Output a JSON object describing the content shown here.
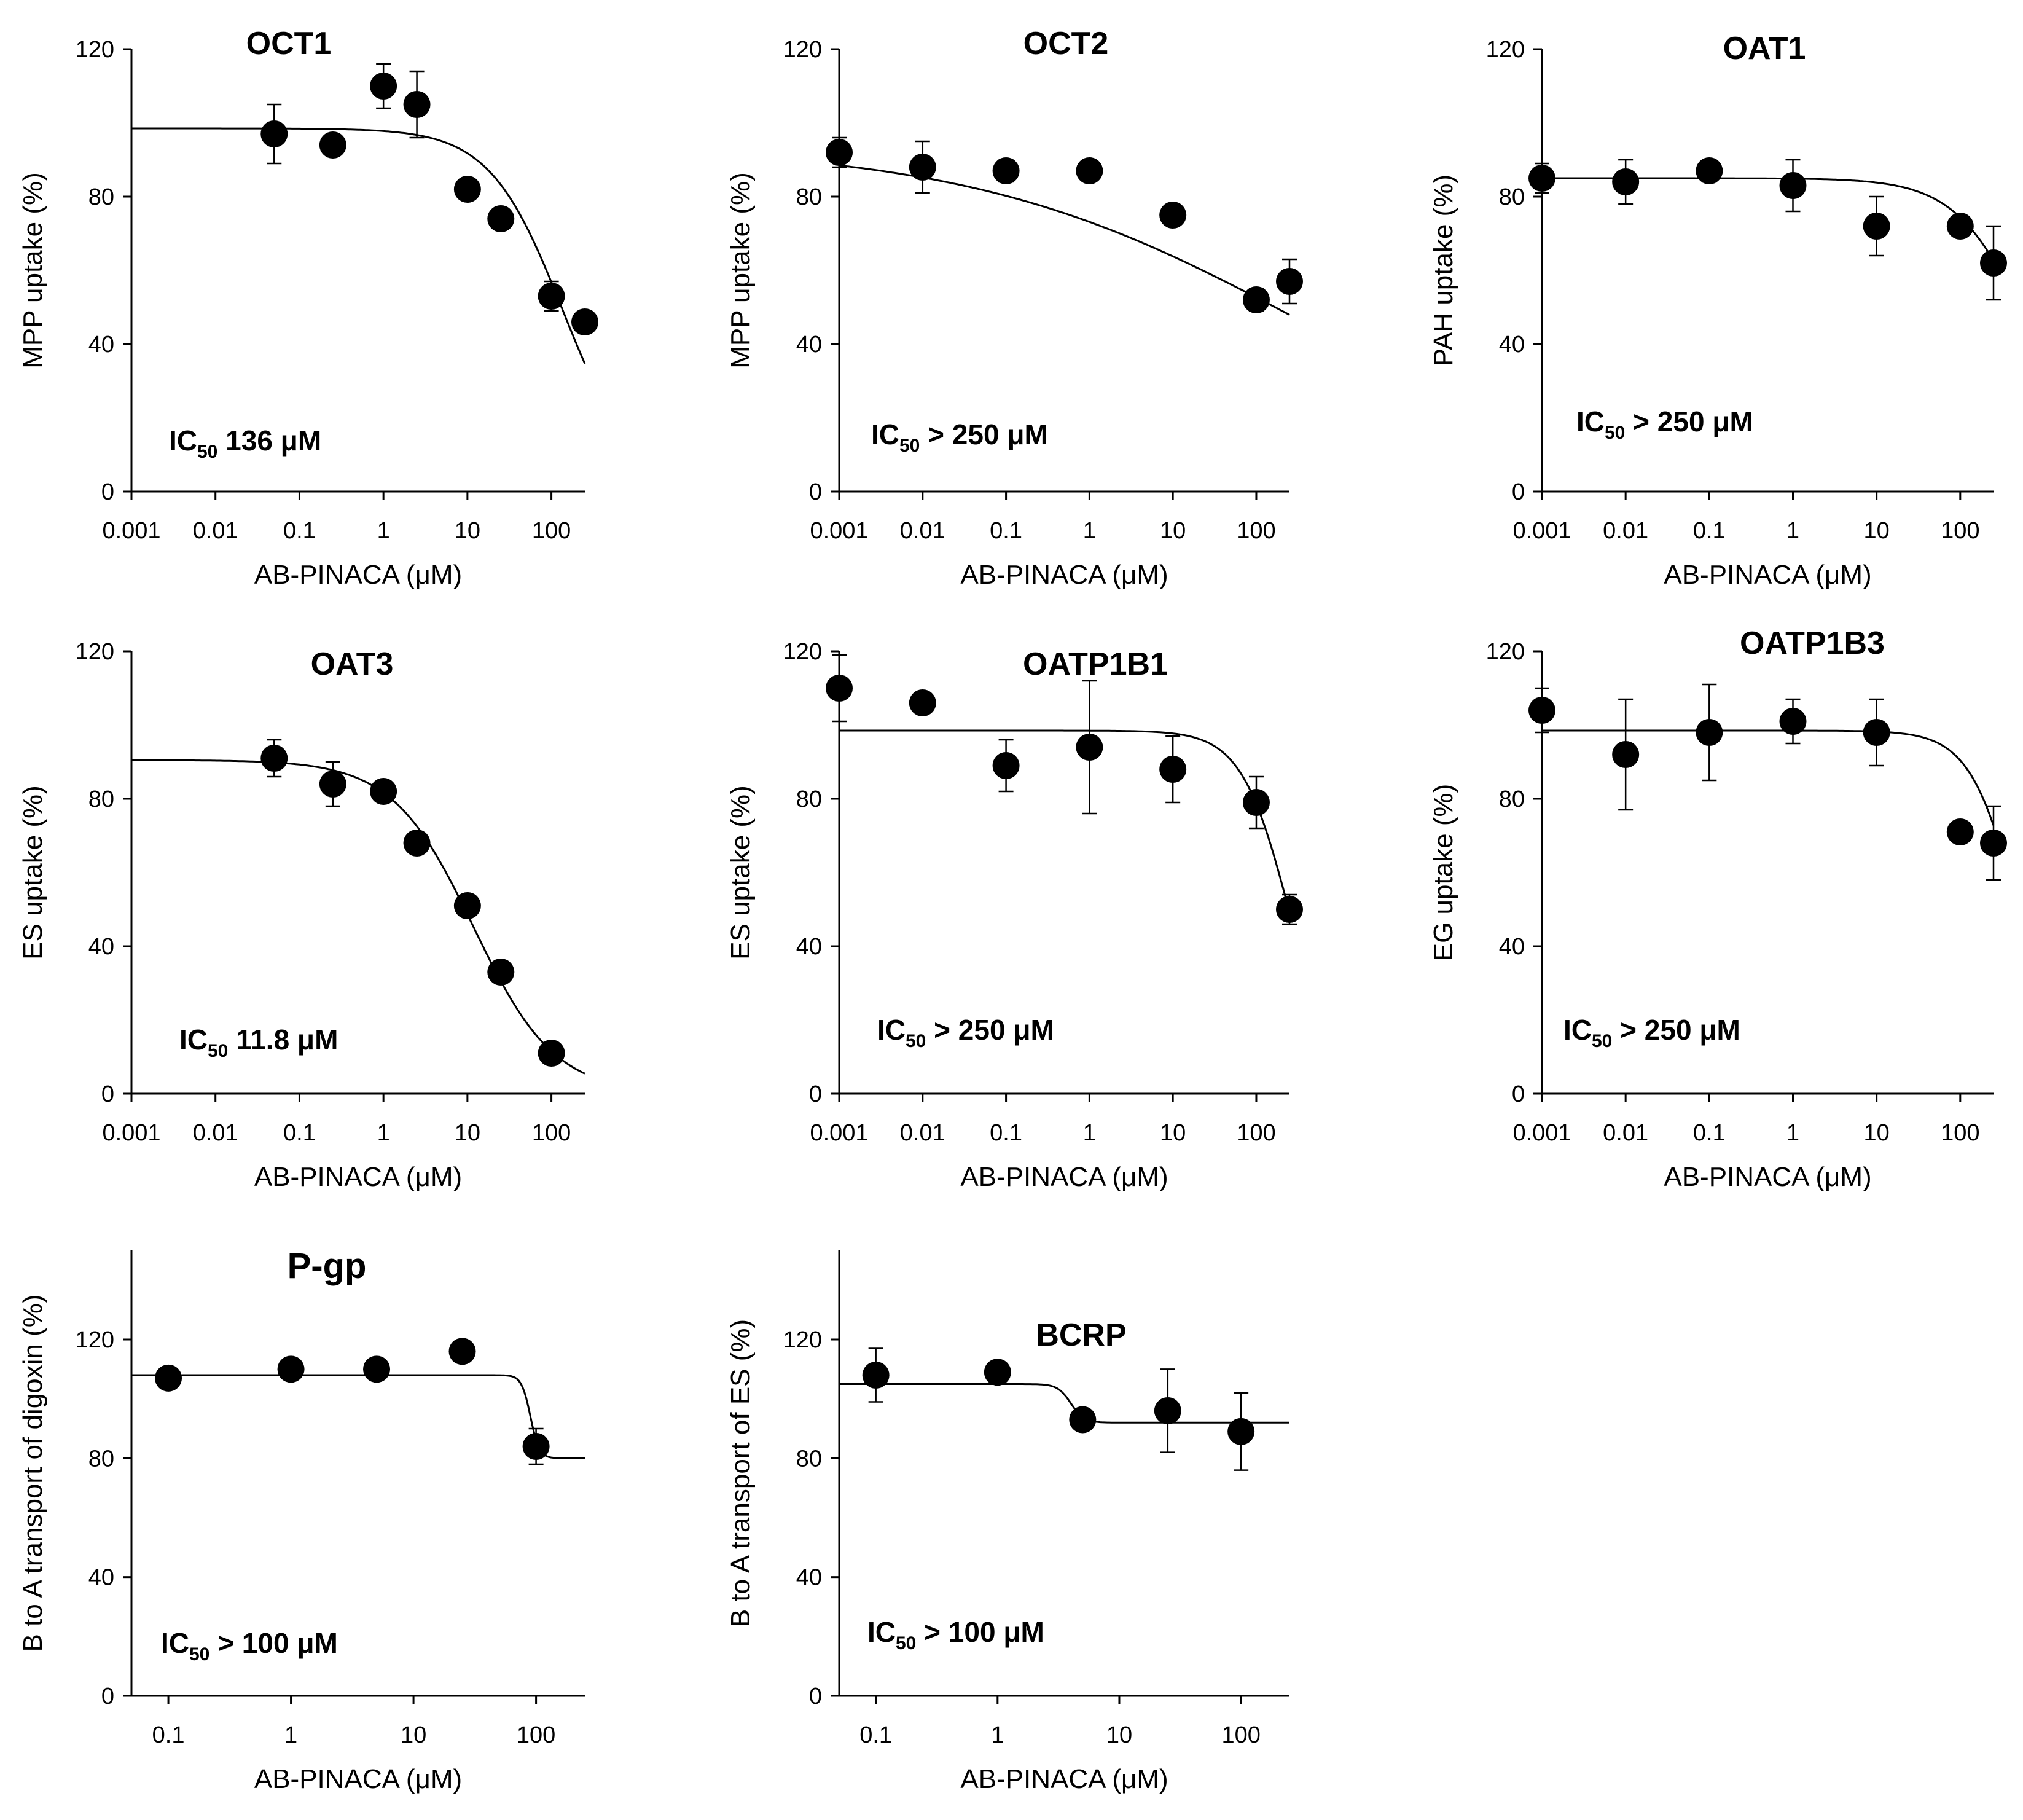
{
  "figure": {
    "panels": [
      {
        "id": "oct1",
        "title": "OCT1",
        "ylabel": "MPP uptake (%)",
        "xlabel": "AB-PINACA (μM)"
      },
      {
        "id": "oct2",
        "title": "OCT2",
        "ylabel": "MPP uptake (%)",
        "xlabel": "AB-PINACA (μM)"
      },
      {
        "id": "oat1",
        "title": "OAT1",
        "ylabel": "PAH uptake (%)",
        "xlabel": "AB-PINACA (μM)"
      },
      {
        "id": "oat3",
        "title": "OAT3",
        "ylabel": "ES uptake (%)",
        "xlabel": "AB-PINACA (μM)"
      },
      {
        "id": "oatp1b1",
        "title": "OATP1B1",
        "ylabel": "ES uptake (%)",
        "xlabel": "AB-PINACA (μM)"
      },
      {
        "id": "oatp1b3",
        "title": "OATP1B3",
        "ylabel": "EG uptake (%)",
        "xlabel": "AB-PINACA (μM)"
      },
      {
        "id": "pgp",
        "title": "P-gp",
        "ylabel": "B to A transport of digoxin (%)",
        "xlabel": "AB-PINACA (μM)"
      },
      {
        "id": "bcrp",
        "title": "BCRP",
        "ylabel": "B to A transport of ES (%)",
        "xlabel": "AB-PINACA (μM)"
      }
    ]
  },
  "chart_data": [
    {
      "type": "scatter",
      "title": "OCT1",
      "xlabel": "AB-PINACA (μM)",
      "ylabel": "MPP uptake (%)",
      "xscale": "log",
      "xlim": [
        0.001,
        250
      ],
      "ylim": [
        0,
        120
      ],
      "xticks": [
        0.001,
        0.01,
        0.1,
        1,
        10,
        100
      ],
      "xtick_labels": [
        "0.001",
        "0.01",
        "0.1",
        "1",
        "10",
        "100"
      ],
      "yticks": [
        0,
        40,
        80,
        120
      ],
      "ytick_labels": [
        "0",
        "40",
        "80",
        "120"
      ],
      "x": [
        0.05,
        0.25,
        1,
        2.5,
        10,
        25,
        100,
        250
      ],
      "y": [
        97,
        94,
        110,
        105,
        82,
        74,
        53,
        46
      ],
      "err": [
        8,
        0,
        6,
        9,
        0,
        0,
        4,
        0
      ],
      "fit": {
        "model": "logistic",
        "top": 98.5,
        "ic50": 136,
        "hill": 1.0,
        "bottom": 0
      },
      "ic50_label": {
        "prefix": "IC",
        "sub": "50",
        "value": " 136 μM"
      }
    },
    {
      "type": "scatter",
      "title": "OCT2",
      "xlabel": "AB-PINACA (μM)",
      "ylabel": "MPP uptake (%)",
      "xscale": "log",
      "xlim": [
        0.001,
        250
      ],
      "ylim": [
        0,
        120
      ],
      "xticks": [
        0.001,
        0.01,
        0.1,
        1,
        10,
        100
      ],
      "xtick_labels": [
        "0.001",
        "0.01",
        "0.1",
        "1",
        "10",
        "100"
      ],
      "yticks": [
        0,
        40,
        80,
        120
      ],
      "ytick_labels": [
        "0",
        "40",
        "80",
        "120"
      ],
      "x": [
        0.001,
        0.01,
        0.1,
        1,
        10,
        100,
        250
      ],
      "y": [
        92,
        88,
        87,
        87,
        75,
        52,
        57
      ],
      "err": [
        4,
        7,
        3,
        0,
        0,
        3,
        6
      ],
      "fit": {
        "model": "logistic",
        "top": 94,
        "ic50": 300,
        "hill": 0.22,
        "bottom": 0
      },
      "ic50_label": {
        "prefix": "IC",
        "sub": "50",
        "value": " > 250 μM"
      }
    },
    {
      "type": "scatter",
      "title": "OAT1",
      "xlabel": "AB-PINACA (μM)",
      "ylabel": "PAH uptake (%)",
      "xscale": "log",
      "xlim": [
        0.001,
        250
      ],
      "ylim": [
        0,
        120
      ],
      "xticks": [
        0.001,
        0.01,
        0.1,
        1,
        10,
        100
      ],
      "xtick_labels": [
        "0.001",
        "0.01",
        "0.1",
        "1",
        "10",
        "100"
      ],
      "yticks": [
        0,
        40,
        80,
        120
      ],
      "ytick_labels": [
        "0",
        "40",
        "80",
        "120"
      ],
      "x": [
        0.001,
        0.01,
        0.1,
        1,
        10,
        100,
        250
      ],
      "y": [
        85,
        84,
        87,
        83,
        72,
        72,
        62
      ],
      "err": [
        4,
        6,
        3,
        7,
        8,
        0,
        10
      ],
      "fit": {
        "model": "logistic",
        "top": 85,
        "ic50": 700,
        "hill": 1.0,
        "bottom": 0
      },
      "ic50_label": {
        "prefix": "IC",
        "sub": "50",
        "value": " > 250 μM"
      }
    },
    {
      "type": "scatter",
      "title": "OAT3",
      "xlabel": "AB-PINACA (μM)",
      "ylabel": "ES uptake (%)",
      "xscale": "log",
      "xlim": [
        0.001,
        250
      ],
      "ylim": [
        0,
        120
      ],
      "xticks": [
        0.001,
        0.01,
        0.1,
        1,
        10,
        100
      ],
      "xtick_labels": [
        "0.001",
        "0.01",
        "0.1",
        "1",
        "10",
        "100"
      ],
      "yticks": [
        0,
        40,
        80,
        120
      ],
      "ytick_labels": [
        "0",
        "40",
        "80",
        "120"
      ],
      "x": [
        0.05,
        0.25,
        1,
        2.5,
        10,
        25,
        100
      ],
      "y": [
        91,
        84,
        82,
        68,
        51,
        33,
        11
      ],
      "err": [
        5,
        6,
        0,
        0,
        0,
        0,
        0
      ],
      "fit": {
        "model": "logistic",
        "top": 90.5,
        "ic50": 11.8,
        "hill": 0.9,
        "bottom": 0
      },
      "ic50_label": {
        "prefix": "IC",
        "sub": "50",
        "value": " 11.8 μM"
      }
    },
    {
      "type": "scatter",
      "title": "OATP1B1",
      "xlabel": "AB-PINACA (μM)",
      "ylabel": "ES uptake (%)",
      "xscale": "log",
      "xlim": [
        0.001,
        250
      ],
      "ylim": [
        0,
        120
      ],
      "xticks": [
        0.001,
        0.01,
        0.1,
        1,
        10,
        100
      ],
      "xtick_labels": [
        "0.001",
        "0.01",
        "0.1",
        "1",
        "10",
        "100"
      ],
      "yticks": [
        0,
        40,
        80,
        120
      ],
      "ytick_labels": [
        "0",
        "40",
        "80",
        "120"
      ],
      "x": [
        0.001,
        0.01,
        0.1,
        1,
        10,
        100,
        250
      ],
      "y": [
        110,
        106,
        89,
        94,
        88,
        79,
        50
      ],
      "err": [
        9,
        0,
        7,
        18,
        9,
        7,
        4
      ],
      "fit": {
        "model": "logistic",
        "top": 98.5,
        "ic50": 250,
        "hill": 1.5,
        "bottom": 0
      },
      "ic50_label": {
        "prefix": "IC",
        "sub": "50",
        "value": " > 250 μM"
      }
    },
    {
      "type": "scatter",
      "title": "OATP1B3",
      "xlabel": "AB-PINACA (μM)",
      "ylabel": "EG uptake (%)",
      "xscale": "log",
      "xlim": [
        0.001,
        250
      ],
      "ylim": [
        0,
        120
      ],
      "xticks": [
        0.001,
        0.01,
        0.1,
        1,
        10,
        100
      ],
      "xtick_labels": [
        "0.001",
        "0.01",
        "0.1",
        "1",
        "10",
        "100"
      ],
      "yticks": [
        0,
        40,
        80,
        120
      ],
      "ytick_labels": [
        "0",
        "40",
        "80",
        "120"
      ],
      "x": [
        0.001,
        0.01,
        0.1,
        1,
        10,
        100,
        250
      ],
      "y": [
        104,
        92,
        98,
        101,
        98,
        71,
        68
      ],
      "err": [
        6,
        15,
        13,
        6,
        9,
        0,
        10
      ],
      "fit": {
        "model": "logistic",
        "top": 98.5,
        "ic50": 500,
        "hill": 1.5,
        "bottom": 0
      },
      "ic50_label": {
        "prefix": "IC",
        "sub": "50",
        "value": " > 250 μM"
      }
    },
    {
      "type": "scatter",
      "title": "P-gp",
      "xlabel": "AB-PINACA (μM)",
      "ylabel": "B to A transport of digoxin (%)",
      "xscale": "log",
      "xlim": [
        0.05,
        250
      ],
      "ylim": [
        0,
        150
      ],
      "xticks": [
        0.1,
        1,
        10,
        100
      ],
      "xtick_labels": [
        "0.1",
        "1",
        "10",
        "100"
      ],
      "yticks": [
        0,
        40,
        80,
        120
      ],
      "ytick_labels": [
        "0",
        "40",
        "80",
        "120"
      ],
      "x": [
        0.1,
        1,
        5,
        25,
        100
      ],
      "y": [
        107,
        110,
        110,
        116,
        84
      ],
      "err": [
        0,
        0,
        0,
        0,
        6
      ],
      "fit": {
        "model": "step",
        "top": 108,
        "bottom": 80,
        "x50": 90,
        "hill": 12
      },
      "ic50_label": {
        "prefix": "IC",
        "sub": "50",
        "value": " > 100 μM"
      }
    },
    {
      "type": "scatter",
      "title": "BCRP",
      "xlabel": "AB-PINACA (μM)",
      "ylabel": "B to A transport of ES (%)",
      "xscale": "log",
      "xlim": [
        0.05,
        250
      ],
      "ylim": [
        0,
        150
      ],
      "xticks": [
        0.1,
        1,
        10,
        100
      ],
      "xtick_labels": [
        "0.1",
        "1",
        "10",
        "100"
      ],
      "yticks": [
        0,
        40,
        80,
        120
      ],
      "ytick_labels": [
        "0",
        "40",
        "80",
        "120"
      ],
      "x": [
        0.1,
        1,
        5,
        25,
        100
      ],
      "y": [
        108,
        109,
        93,
        96,
        89
      ],
      "err": [
        9,
        0,
        0,
        14,
        13
      ],
      "fit": {
        "model": "step",
        "top": 105,
        "bottom": 92,
        "x50": 4,
        "hill": 8
      },
      "ic50_label": {
        "prefix": "IC",
        "sub": "50",
        "value": " > 100 μM"
      }
    }
  ]
}
